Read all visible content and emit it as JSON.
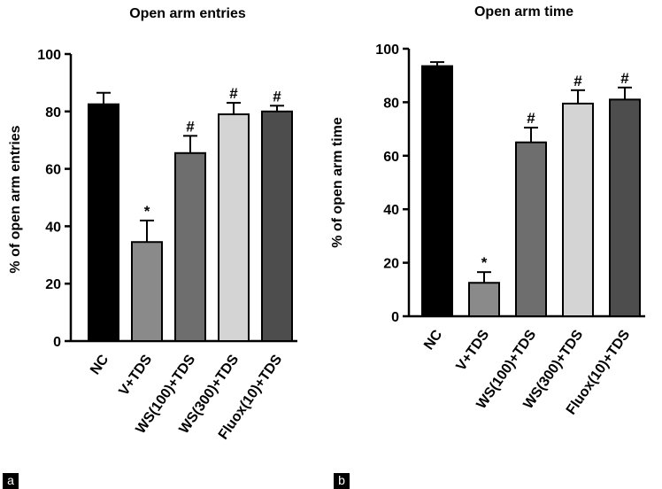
{
  "chart_data": [
    {
      "type": "bar",
      "panel_label": "a",
      "title": "Open arm entries",
      "ylabel": "% of open arm entries",
      "xlabel": "",
      "ylim": [
        0,
        100
      ],
      "yticks": [
        0,
        20,
        40,
        60,
        80,
        100
      ],
      "categories": [
        "NC",
        "V+TDS",
        "WS(100)+TDS",
        "WS(300)+TDS",
        "Fluox(10)+TDS"
      ],
      "values": [
        82.5,
        34.5,
        65.5,
        79,
        80
      ],
      "errors": [
        4,
        7.5,
        6,
        4,
        2
      ],
      "annotations": [
        "",
        "*",
        "#",
        "#",
        "#"
      ],
      "colors": [
        "#000000",
        "#8a8a8a",
        "#6e6e6e",
        "#d4d4d4",
        "#4d4d4d"
      ]
    },
    {
      "type": "bar",
      "panel_label": "b",
      "title": "Open arm time",
      "ylabel": "% of open arm time",
      "xlabel": "",
      "ylim": [
        0,
        100
      ],
      "yticks": [
        0,
        20,
        40,
        60,
        80,
        100
      ],
      "categories": [
        "NC",
        "V+TDS",
        "WS(100)+TDS",
        "WS(300)+TDS",
        "Fluox(10)+TDS"
      ],
      "values": [
        93.5,
        12.5,
        65,
        79.5,
        81
      ],
      "errors": [
        1.5,
        4,
        5.5,
        5,
        4.5
      ],
      "annotations": [
        "",
        "*",
        "#",
        "#",
        "#"
      ],
      "colors": [
        "#000000",
        "#8a8a8a",
        "#6e6e6e",
        "#d4d4d4",
        "#4d4d4d"
      ]
    }
  ]
}
